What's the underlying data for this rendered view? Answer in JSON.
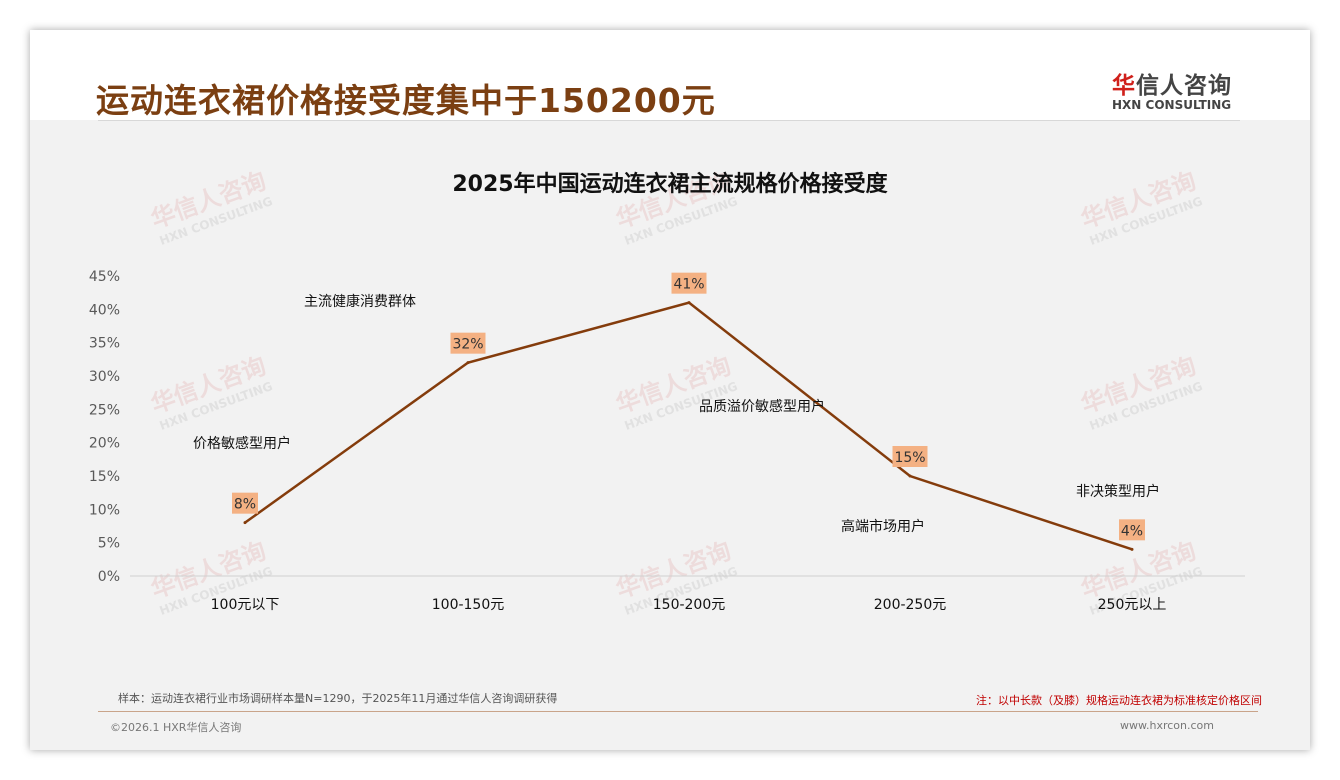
{
  "header": {
    "title": "运动连衣裙价格接受度集中于150200元",
    "logo_cn_red": "华",
    "logo_cn": "信人咨询",
    "logo_en": "HXN CONSULTING"
  },
  "watermark": {
    "cn": "华信人咨询",
    "en": "HXN CONSULTING"
  },
  "chart_data": {
    "type": "line",
    "title": "2025年中国运动连衣裙主流规格价格接受度",
    "categories": [
      "100元以下",
      "100-150元",
      "150-200元",
      "200-250元",
      "250元以上"
    ],
    "values": [
      8,
      32,
      41,
      15,
      4
    ],
    "data_labels": [
      "8%",
      "32%",
      "41%",
      "15%",
      "4%"
    ],
    "ylim": [
      0,
      45
    ],
    "yticks": [
      "0%",
      "5%",
      "10%",
      "15%",
      "20%",
      "25%",
      "30%",
      "35%",
      "40%",
      "45%"
    ],
    "annotations": [
      "价格敏感型用户",
      "主流健康消费群体",
      "品质溢价敏感型用户",
      "高端市场用户",
      "非决策型用户"
    ],
    "line_color": "#843c0c",
    "label_bg": "#f4b183",
    "grid": false
  },
  "footer": {
    "sample": "样本：运动连衣裙行业市场调研样本量N=1290，于2025年11月通过华信人咨询调研获得",
    "note": "注：以中长款（及膝）规格运动连衣裙为标准核定价格区间",
    "copyright": "©2026.1 HXR华信人咨询",
    "website": "www.hxrcon.com"
  }
}
